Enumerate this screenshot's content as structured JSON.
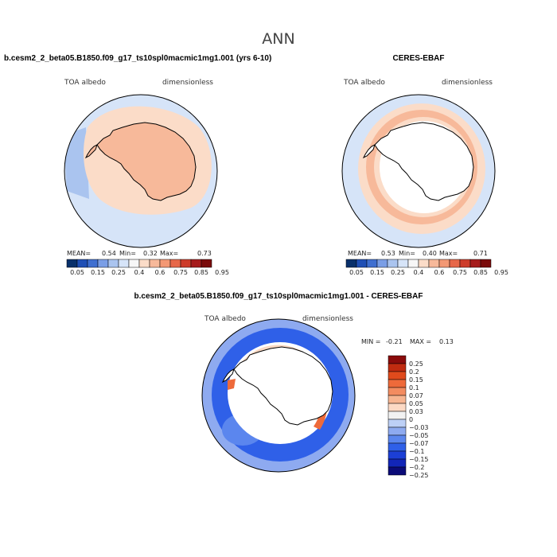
{
  "figure": {
    "title": "ANN"
  },
  "colors": {
    "panel1": [
      "#08306b",
      "#1f4fb5",
      "#3f6fd0",
      "#7a9ee6",
      "#aac4ef",
      "#d6e4f8",
      "#f7f7f7",
      "#fbdcc8",
      "#f7b99a",
      "#f39874",
      "#e7684a",
      "#cd3c2a",
      "#a61c1c",
      "#7a0b0b"
    ],
    "diff": [
      "#0b0b78",
      "#1226b8",
      "#1c3fd6",
      "#2f60e8",
      "#5b86ee",
      "#8eaaf0",
      "#bdd0f6",
      "#f2f2f2",
      "#fcd9c4",
      "#f7b591",
      "#f38c60",
      "#ee6a3a",
      "#e04a1c",
      "#c02b10",
      "#8a0b0b"
    ],
    "ocean_light": "#d6e4f8",
    "ocean_mid": "#aac4ef",
    "land_light": "#fbdcc8",
    "land_mid": "#f7b99a",
    "diff_ocean": "#2f60e8",
    "diff_ocean_light": "#8eaaf0",
    "diff_ring": "#fbd9c4",
    "diff_red": "#ee6a3a"
  },
  "chart_data": [
    {
      "type": "heatmap",
      "name": "model",
      "title": "b.cesm2_2_beta05.B1850.f09_g17_ts10spl0macmic1mg1.001 (yrs 6-10)",
      "left_label": "TOA albedo",
      "right_label": "dimensionless",
      "stats": {
        "mean_label": "MEAN=",
        "mean": "0.54",
        "min_label": "Min=",
        "min": "0.32",
        "max_label": "Max=",
        "max": "0.73"
      },
      "colorbar": {
        "orientation": "horizontal",
        "ticks": [
          "0.05",
          "0.15",
          "0.25",
          "0.4",
          "0.6",
          "0.75",
          "0.85",
          "0.95"
        ]
      }
    },
    {
      "type": "heatmap",
      "name": "obs",
      "title": "CERES-EBAF",
      "left_label": "TOA albedo",
      "right_label": "dimensionless",
      "stats": {
        "mean_label": "MEAN=",
        "mean": "0.53",
        "min_label": "Min=",
        "min": "0.40",
        "max_label": "Max=",
        "max": "0.71"
      },
      "colorbar": {
        "orientation": "horizontal",
        "ticks": [
          "0.05",
          "0.15",
          "0.25",
          "0.4",
          "0.6",
          "0.75",
          "0.85",
          "0.95"
        ]
      }
    },
    {
      "type": "heatmap",
      "name": "diff",
      "title": "b.cesm2_2_beta05.B1850.f09_g17_ts10spl0macmic1mg1.001 - CERES-EBAF",
      "left_label": "TOA albedo",
      "right_label": "dimensionless",
      "stats": {
        "min_label": "MIN =",
        "min": "-0.21",
        "max_label": "MAX =",
        "max": "0.13"
      },
      "colorbar": {
        "orientation": "vertical",
        "ticks": [
          "0.25",
          "0.2",
          "0.15",
          "0.1",
          "0.07",
          "0.05",
          "0.03",
          "0",
          "−0.03",
          "−0.05",
          "−0.07",
          "−0.1",
          "−0.15",
          "−0.2",
          "−0.25"
        ]
      }
    }
  ]
}
